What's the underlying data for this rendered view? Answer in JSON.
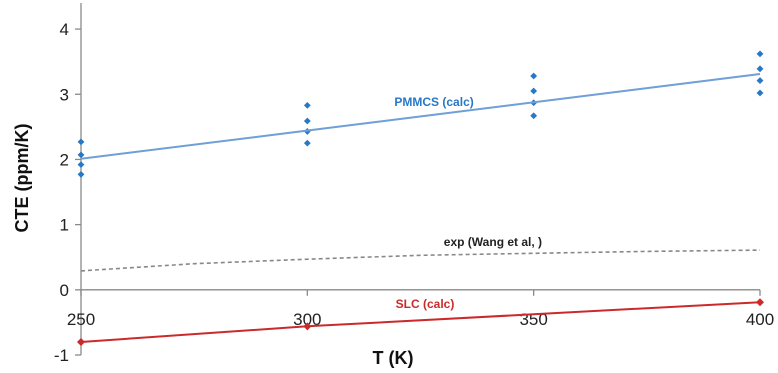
{
  "chart_data": {
    "type": "scatter",
    "xlabel": "T (K)",
    "ylabel": "CTE (ppm/K)",
    "xlim": [
      250,
      400
    ],
    "ylim": [
      -1,
      4.4
    ],
    "x_ticks": [
      250,
      300,
      350,
      400
    ],
    "y_ticks": [
      -1,
      0,
      1,
      2,
      3,
      4
    ],
    "colors": {
      "pmmcs": "#2878c8",
      "pmmcs_line": "#6f9fd6",
      "slc": "#cc2a2a",
      "exp": "#888888"
    },
    "series": [
      {
        "name": "PMMCS (calc)",
        "kind": "scatter",
        "x": [
          250,
          250,
          250,
          250,
          300,
          300,
          300,
          300,
          350,
          350,
          350,
          350,
          400,
          400,
          400,
          400
        ],
        "y": [
          2.27,
          2.07,
          1.92,
          1.77,
          2.83,
          2.59,
          2.43,
          2.25,
          3.28,
          3.05,
          2.87,
          2.67,
          3.62,
          3.39,
          3.21,
          3.02
        ]
      },
      {
        "name": "",
        "kind": "fit-line",
        "x": [
          250,
          400
        ],
        "y": [
          2.01,
          3.31
        ]
      },
      {
        "name": "exp (Wang et al, )",
        "kind": "dashed-line",
        "x": [
          250,
          275,
          300,
          325,
          350,
          375,
          400
        ],
        "y": [
          0.29,
          0.4,
          0.47,
          0.53,
          0.56,
          0.59,
          0.61
        ]
      },
      {
        "name": "SLC (calc)",
        "kind": "line-markers",
        "x": [
          250,
          300,
          400
        ],
        "y": [
          -0.8,
          -0.56,
          -0.19
        ]
      }
    ],
    "annotations": [
      {
        "text": "PMMCS (calc)",
        "x": 328,
        "y": 2.82,
        "color": "#2878c8"
      },
      {
        "text": "exp (Wang et al, )",
        "x": 341,
        "y": 0.67,
        "color": "#222222"
      },
      {
        "text": "SLC (calc)",
        "x": 326,
        "y": -0.28,
        "color": "#cc2a2a"
      }
    ]
  }
}
